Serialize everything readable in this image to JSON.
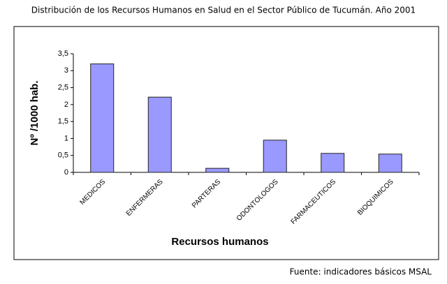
{
  "chart_data": {
    "type": "bar",
    "title": "Distribución de los Recursos Humanos en Salud en el Sector Público de Tucumán. Año 2001",
    "y_label": "Nº /1000 hab.",
    "x_label": "Recursos humanos",
    "source": "Fuente: indicadores básicos MSAL",
    "categories": [
      "MEDICOS",
      "ENFERMERAS",
      "PARTERAS",
      "ODONTOLOGOS",
      "FARMACEUTICOS",
      "BIOQUIMICOS"
    ],
    "values": [
      3.2,
      2.22,
      0.12,
      0.95,
      0.56,
      0.54
    ],
    "color": "#9999ff",
    "ylim": [
      0,
      3.5
    ],
    "yticks": [
      0,
      {
        "value": 0.5,
        "label": "0,5"
      },
      1,
      {
        "value": 1.5,
        "label": "1,5"
      },
      2,
      {
        "value": 2.5,
        "label": "2,5"
      },
      3,
      {
        "value": 3.5,
        "label": "3,5"
      }
    ],
    "grid": false
  }
}
